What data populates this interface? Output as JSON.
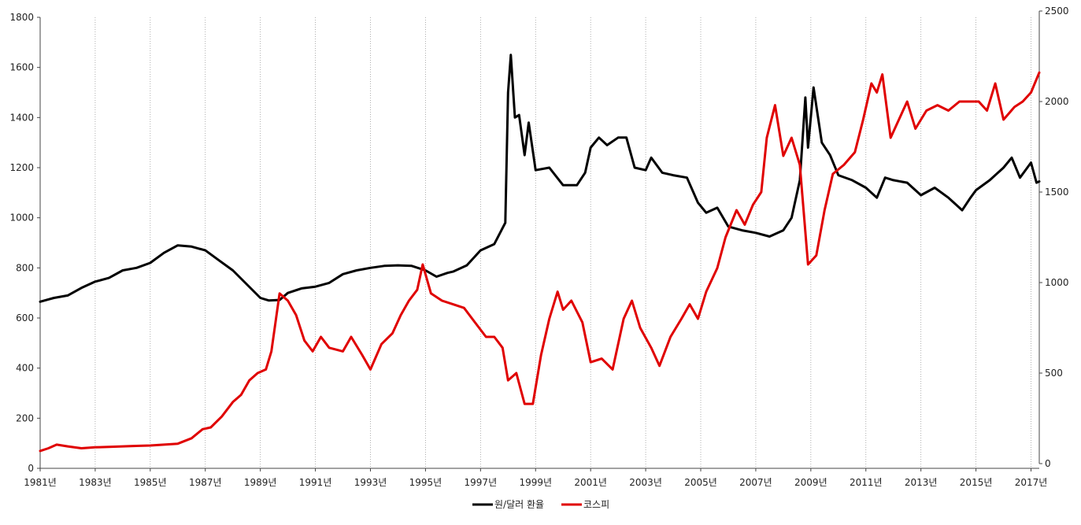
{
  "chart_data": {
    "type": "line",
    "title": "",
    "xlabel": "",
    "ylabel": "",
    "x_tick_labels": [
      "1981년",
      "1983년",
      "1985년",
      "1987년",
      "1989년",
      "1991년",
      "1993년",
      "1995년",
      "1997년",
      "1999년",
      "2001년",
      "2003년",
      "2005년",
      "2007년",
      "2009년",
      "2011년",
      "2013년",
      "2015년",
      "2017년"
    ],
    "x_tick_years": [
      1981,
      1983,
      1985,
      1987,
      1989,
      1991,
      1993,
      1995,
      1997,
      1999,
      2001,
      2003,
      2005,
      2007,
      2009,
      2011,
      2013,
      2015,
      2017
    ],
    "xlim": [
      1981,
      2017.3
    ],
    "y_left": {
      "lim": [
        0,
        1800
      ],
      "ticks": [
        "0",
        "200",
        "400",
        "600",
        "800",
        "1000",
        "1200",
        "1400",
        "1600",
        "1800"
      ]
    },
    "y_right": {
      "lim": [
        0,
        2500
      ],
      "ticks": [
        "0",
        "500",
        "1000",
        "1500",
        "2000",
        "2500"
      ]
    },
    "grid": "vertical dotted lines at x ticks",
    "legend_position": "bottom-center",
    "series": [
      {
        "name": "원/달러 환율",
        "color": "#000000",
        "axis": "left",
        "points": [
          [
            1981.0,
            665
          ],
          [
            1981.5,
            680
          ],
          [
            1982.0,
            690
          ],
          [
            1982.5,
            720
          ],
          [
            1983.0,
            745
          ],
          [
            1983.5,
            760
          ],
          [
            1984.0,
            790
          ],
          [
            1984.5,
            800
          ],
          [
            1985.0,
            820
          ],
          [
            1985.5,
            860
          ],
          [
            1986.0,
            890
          ],
          [
            1986.5,
            885
          ],
          [
            1987.0,
            870
          ],
          [
            1987.5,
            830
          ],
          [
            1988.0,
            790
          ],
          [
            1988.5,
            735
          ],
          [
            1989.0,
            680
          ],
          [
            1989.3,
            670
          ],
          [
            1989.7,
            672
          ],
          [
            1990.0,
            700
          ],
          [
            1990.5,
            718
          ],
          [
            1991.0,
            725
          ],
          [
            1991.5,
            740
          ],
          [
            1992.0,
            775
          ],
          [
            1992.5,
            790
          ],
          [
            1993.0,
            800
          ],
          [
            1993.5,
            808
          ],
          [
            1994.0,
            810
          ],
          [
            1994.5,
            808
          ],
          [
            1995.0,
            790
          ],
          [
            1995.4,
            765
          ],
          [
            1995.8,
            780
          ],
          [
            1996.0,
            785
          ],
          [
            1996.5,
            810
          ],
          [
            1997.0,
            870
          ],
          [
            1997.5,
            895
          ],
          [
            1997.9,
            980
          ],
          [
            1998.0,
            1500
          ],
          [
            1998.1,
            1650
          ],
          [
            1998.25,
            1400
          ],
          [
            1998.4,
            1410
          ],
          [
            1998.6,
            1250
          ],
          [
            1998.75,
            1380
          ],
          [
            1999.0,
            1190
          ],
          [
            1999.5,
            1200
          ],
          [
            2000.0,
            1130
          ],
          [
            2000.5,
            1130
          ],
          [
            2000.8,
            1180
          ],
          [
            2001.0,
            1280
          ],
          [
            2001.3,
            1320
          ],
          [
            2001.6,
            1290
          ],
          [
            2002.0,
            1320
          ],
          [
            2002.3,
            1320
          ],
          [
            2002.6,
            1200
          ],
          [
            2003.0,
            1190
          ],
          [
            2003.2,
            1240
          ],
          [
            2003.6,
            1180
          ],
          [
            2004.0,
            1170
          ],
          [
            2004.5,
            1160
          ],
          [
            2004.9,
            1060
          ],
          [
            2005.2,
            1020
          ],
          [
            2005.6,
            1040
          ],
          [
            2006.0,
            965
          ],
          [
            2006.5,
            950
          ],
          [
            2007.0,
            940
          ],
          [
            2007.5,
            925
          ],
          [
            2008.0,
            950
          ],
          [
            2008.3,
            1000
          ],
          [
            2008.6,
            1150
          ],
          [
            2008.8,
            1480
          ],
          [
            2008.9,
            1280
          ],
          [
            2009.1,
            1520
          ],
          [
            2009.4,
            1300
          ],
          [
            2009.7,
            1250
          ],
          [
            2010.0,
            1170
          ],
          [
            2010.5,
            1150
          ],
          [
            2011.0,
            1120
          ],
          [
            2011.4,
            1080
          ],
          [
            2011.7,
            1160
          ],
          [
            2012.0,
            1150
          ],
          [
            2012.5,
            1140
          ],
          [
            2013.0,
            1090
          ],
          [
            2013.5,
            1120
          ],
          [
            2014.0,
            1080
          ],
          [
            2014.5,
            1030
          ],
          [
            2014.8,
            1080
          ],
          [
            2015.0,
            1110
          ],
          [
            2015.5,
            1150
          ],
          [
            2016.0,
            1200
          ],
          [
            2016.3,
            1240
          ],
          [
            2016.6,
            1160
          ],
          [
            2017.0,
            1220
          ],
          [
            2017.2,
            1140
          ],
          [
            2017.3,
            1145
          ]
        ]
      },
      {
        "name": "코스피",
        "color": "#e00000",
        "axis": "right",
        "points": [
          [
            1981.0,
            70
          ],
          [
            1981.3,
            85
          ],
          [
            1981.6,
            105
          ],
          [
            1982.0,
            95
          ],
          [
            1982.5,
            85
          ],
          [
            1983.0,
            90
          ],
          [
            1983.5,
            92
          ],
          [
            1984.0,
            95
          ],
          [
            1984.5,
            98
          ],
          [
            1985.0,
            100
          ],
          [
            1985.5,
            105
          ],
          [
            1986.0,
            110
          ],
          [
            1986.5,
            140
          ],
          [
            1986.9,
            190
          ],
          [
            1987.2,
            200
          ],
          [
            1987.6,
            260
          ],
          [
            1988.0,
            340
          ],
          [
            1988.3,
            380
          ],
          [
            1988.6,
            460
          ],
          [
            1988.9,
            500
          ],
          [
            1989.2,
            520
          ],
          [
            1989.4,
            620
          ],
          [
            1989.7,
            940
          ],
          [
            1990.0,
            900
          ],
          [
            1990.3,
            820
          ],
          [
            1990.6,
            680
          ],
          [
            1990.9,
            620
          ],
          [
            1991.2,
            700
          ],
          [
            1991.5,
            640
          ],
          [
            1992.0,
            620
          ],
          [
            1992.3,
            700
          ],
          [
            1992.7,
            600
          ],
          [
            1993.0,
            520
          ],
          [
            1993.4,
            660
          ],
          [
            1993.8,
            720
          ],
          [
            1994.1,
            820
          ],
          [
            1994.4,
            900
          ],
          [
            1994.7,
            960
          ],
          [
            1994.9,
            1100
          ],
          [
            1995.2,
            940
          ],
          [
            1995.6,
            900
          ],
          [
            1996.0,
            880
          ],
          [
            1996.4,
            860
          ],
          [
            1996.8,
            780
          ],
          [
            1997.2,
            700
          ],
          [
            1997.5,
            700
          ],
          [
            1997.8,
            640
          ],
          [
            1998.0,
            460
          ],
          [
            1998.3,
            500
          ],
          [
            1998.6,
            330
          ],
          [
            1998.9,
            330
          ],
          [
            1999.2,
            600
          ],
          [
            1999.5,
            800
          ],
          [
            1999.8,
            950
          ],
          [
            2000.0,
            850
          ],
          [
            2000.3,
            900
          ],
          [
            2000.7,
            780
          ],
          [
            2001.0,
            560
          ],
          [
            2001.4,
            580
          ],
          [
            2001.8,
            520
          ],
          [
            2002.2,
            800
          ],
          [
            2002.5,
            900
          ],
          [
            2002.8,
            750
          ],
          [
            2003.2,
            640
          ],
          [
            2003.5,
            540
          ],
          [
            2003.9,
            700
          ],
          [
            2004.3,
            800
          ],
          [
            2004.6,
            880
          ],
          [
            2004.9,
            800
          ],
          [
            2005.2,
            950
          ],
          [
            2005.6,
            1080
          ],
          [
            2005.9,
            1250
          ],
          [
            2006.3,
            1400
          ],
          [
            2006.6,
            1320
          ],
          [
            2006.9,
            1430
          ],
          [
            2007.2,
            1500
          ],
          [
            2007.4,
            1800
          ],
          [
            2007.7,
            1980
          ],
          [
            2008.0,
            1700
          ],
          [
            2008.3,
            1800
          ],
          [
            2008.6,
            1650
          ],
          [
            2008.9,
            1100
          ],
          [
            2009.2,
            1150
          ],
          [
            2009.5,
            1400
          ],
          [
            2009.8,
            1600
          ],
          [
            2010.2,
            1650
          ],
          [
            2010.6,
            1720
          ],
          [
            2010.9,
            1900
          ],
          [
            2011.2,
            2100
          ],
          [
            2011.4,
            2050
          ],
          [
            2011.6,
            2150
          ],
          [
            2011.9,
            1800
          ],
          [
            2012.2,
            1900
          ],
          [
            2012.5,
            2000
          ],
          [
            2012.8,
            1850
          ],
          [
            2013.2,
            1950
          ],
          [
            2013.6,
            1980
          ],
          [
            2014.0,
            1950
          ],
          [
            2014.4,
            2000
          ],
          [
            2014.8,
            2000
          ],
          [
            2015.1,
            2000
          ],
          [
            2015.4,
            1950
          ],
          [
            2015.7,
            2100
          ],
          [
            2016.0,
            1900
          ],
          [
            2016.4,
            1970
          ],
          [
            2016.7,
            2000
          ],
          [
            2017.0,
            2050
          ],
          [
            2017.3,
            2160
          ]
        ]
      }
    ]
  }
}
